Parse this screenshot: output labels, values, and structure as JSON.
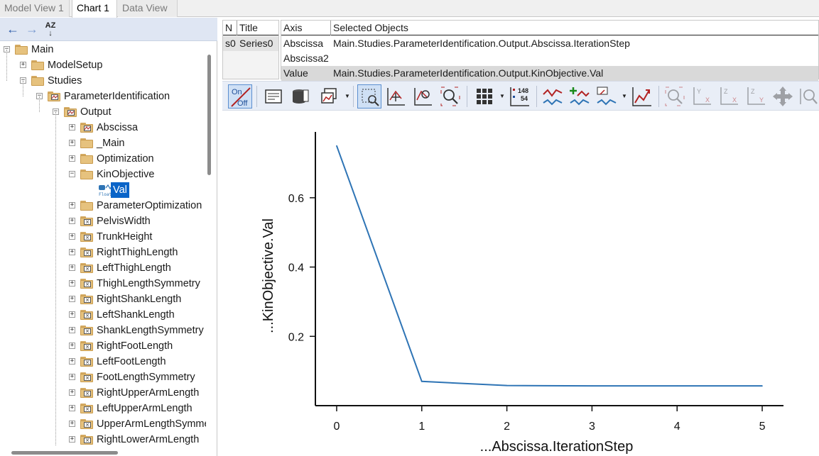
{
  "tabs": [
    {
      "label": "Model View 1",
      "active": false
    },
    {
      "label": "Chart 1",
      "active": true
    },
    {
      "label": "Data View",
      "active": false
    }
  ],
  "nav": {
    "back_icon": "arrow-left-icon",
    "forward_icon": "arrow-right-icon",
    "sort_icon": "sort-az-icon",
    "sort_label": "AZ"
  },
  "tree": {
    "root": "Main",
    "model_setup": "ModelSetup",
    "studies": "Studies",
    "param_ident": "ParameterIdentification",
    "output": "Output",
    "abscissa": "Abscissa",
    "main_folder": "_Main",
    "optimization": "Optimization",
    "kin_objective": "KinObjective",
    "val": "Val",
    "float_tag": "Float",
    "leaves": [
      "ParameterOptimization",
      "PelvisWidth",
      "TrunkHeight",
      "RightThighLength",
      "LeftThighLength",
      "ThighLengthSymmetry",
      "RightShankLength",
      "LeftShankLength",
      "ShankLengthSymmetry",
      "RightFootLength",
      "LeftFootLength",
      "FootLengthSymmetry",
      "RightUpperArmLength",
      "LeftUpperArmLength",
      "UpperArmLengthSymmetry",
      "RightLowerArmLength"
    ]
  },
  "series_table": {
    "headers": [
      "N",
      "Title"
    ],
    "rows": [
      [
        "s0",
        "Series0"
      ]
    ]
  },
  "axis_table": {
    "headers": [
      "Axis",
      "Selected Objects"
    ],
    "rows": [
      [
        "Abscissa",
        "Main.Studies.ParameterIdentification.Output.Abscissa.IterationStep"
      ],
      [
        "Abscissa2",
        ""
      ],
      [
        "Value",
        "Main.Studies.ParameterIdentification.Output.KinObjective.Val"
      ]
    ]
  },
  "toolbar": {
    "on_label": "On",
    "off_label": "Off",
    "counter_top": "148",
    "counter_bottom": "54",
    "icons": [
      "on-off-toggle-icon",
      "properties-icon",
      "database-icon",
      "copy-chart-icon",
      "zoom-region-icon",
      "pan-icon",
      "zoom-box-icon",
      "zoom-icon",
      "grid-icon",
      "counter-icon",
      "series-style-icon",
      "add-series-icon",
      "edit-series-icon",
      "trend-icon",
      "zoom-disabled-icon",
      "axis-yx-icon",
      "axis-zx-icon",
      "axis-zy-icon",
      "move-icon",
      "zoom-fit-icon"
    ]
  },
  "chart_data": {
    "type": "line",
    "title": "",
    "xlabel": "...Abscissa.IterationStep",
    "ylabel": "...KinObjective.Val",
    "x": [
      0,
      1,
      2,
      3,
      4,
      5
    ],
    "series": [
      {
        "values": [
          0.75,
          0.07,
          0.058,
          0.057,
          0.057,
          0.057
        ],
        "color": "#2e74b5"
      }
    ],
    "xlim": [
      -0.25,
      5.25
    ],
    "ylim": [
      0.0,
      0.79
    ],
    "xticks": [
      0,
      1,
      2,
      3,
      4,
      5
    ],
    "yticks": [
      0.2,
      0.4,
      0.6
    ],
    "ytick_labels": [
      "0.2",
      "0.4",
      "0.6"
    ],
    "grid": false
  }
}
